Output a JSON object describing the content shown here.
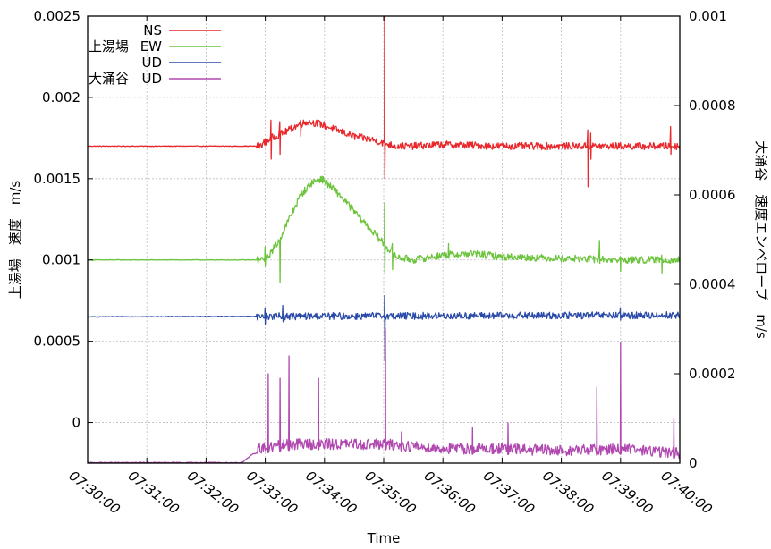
{
  "chart_data": {
    "type": "line",
    "xlabel": "Time",
    "ylabel_left": "上湯場　速度　m/s",
    "ylabel_right": "大涌谷　速度エンベロープ　m/s",
    "x_ticks": [
      "07:30:00",
      "07:31:00",
      "07:32:00",
      "07:33:00",
      "07:34:00",
      "07:35:00",
      "07:36:00",
      "07:37:00",
      "07:38:00",
      "07:39:00",
      "07:40:00"
    ],
    "xlim": [
      "07:30:00",
      "07:40:00"
    ],
    "y_left_ticks": [
      "0",
      "0.0005",
      "0.001",
      "0.0015",
      "0.002",
      "0.0025"
    ],
    "y_left_lim": [
      -0.00025,
      0.0025
    ],
    "y_right_ticks": [
      "0",
      "0.0002",
      "0.0004",
      "0.0006",
      "0.0008",
      "0.001"
    ],
    "y_right_lim": [
      0,
      0.001
    ],
    "grid": true,
    "legend": {
      "position": "top-left",
      "entries": [
        {
          "station": "",
          "component": "NS",
          "color": "#e8282c"
        },
        {
          "station": "上湯場",
          "component": "EW",
          "color": "#6cc43c"
        },
        {
          "station": "",
          "component": "UD",
          "color": "#2a4aa8"
        },
        {
          "station": "大涌谷",
          "component": "UD",
          "color": "#b048b0"
        }
      ]
    },
    "series": [
      {
        "name": "上湯場 NS",
        "axis": "left",
        "color": "#e8282c",
        "baseline": 0.0017,
        "points": [
          [
            0,
            0.0017
          ],
          [
            2.9,
            0.0017
          ],
          [
            3.1,
            0.00175
          ],
          [
            3.3,
            0.00178
          ],
          [
            3.5,
            0.00182
          ],
          [
            3.7,
            0.00185
          ],
          [
            3.9,
            0.00184
          ],
          [
            4.2,
            0.0018
          ],
          [
            4.5,
            0.00176
          ],
          [
            4.8,
            0.00174
          ],
          [
            5.0,
            0.00172
          ],
          [
            5.2,
            0.0017
          ],
          [
            5.5,
            0.0017
          ],
          [
            6.0,
            0.00171
          ],
          [
            7.0,
            0.0017
          ],
          [
            8.0,
            0.0017
          ],
          [
            9.0,
            0.0017
          ],
          [
            10.0,
            0.0017
          ]
        ],
        "spikes": [
          [
            3.1,
            0.00186,
            0.00162
          ],
          [
            3.25,
            0.00185,
            0.00165
          ],
          [
            3.6,
            0.00186,
            0.00176
          ],
          [
            5.02,
            0.0025,
            0.0015
          ],
          [
            8.45,
            0.0018,
            0.00145
          ],
          [
            8.5,
            0.00178,
            0.00162
          ],
          [
            9.85,
            0.00182,
            0.00165
          ]
        ]
      },
      {
        "name": "上湯場 EW",
        "axis": "left",
        "color": "#6cc43c",
        "baseline": 0.001,
        "points": [
          [
            0,
            0.001
          ],
          [
            3.0,
            0.001
          ],
          [
            3.2,
            0.0011
          ],
          [
            3.4,
            0.00125
          ],
          [
            3.6,
            0.0014
          ],
          [
            3.8,
            0.00148
          ],
          [
            3.95,
            0.0015
          ],
          [
            4.2,
            0.00142
          ],
          [
            4.5,
            0.0013
          ],
          [
            4.8,
            0.00118
          ],
          [
            5.0,
            0.0011
          ],
          [
            5.2,
            0.00102
          ],
          [
            5.5,
            0.001
          ],
          [
            6.0,
            0.00103
          ],
          [
            6.5,
            0.00104
          ],
          [
            7.0,
            0.00102
          ],
          [
            8.0,
            0.00101
          ],
          [
            9.0,
            0.001
          ],
          [
            10.0,
            0.001
          ]
        ],
        "spikes": [
          [
            3.0,
            0.00108,
            0.00096
          ],
          [
            3.25,
            0.0011,
            0.00086
          ],
          [
            5.02,
            0.00135,
            0.00092
          ],
          [
            5.15,
            0.0011,
            0.00094
          ],
          [
            6.1,
            0.0011,
            0.00101
          ],
          [
            8.65,
            0.00112,
            0.00098
          ],
          [
            9.0,
            0.00102,
            0.00093
          ],
          [
            9.7,
            0.00103,
            0.00092
          ]
        ]
      },
      {
        "name": "上湯場 UD",
        "axis": "left",
        "color": "#2a4aa8",
        "baseline": 0.00065,
        "points": [
          [
            0,
            0.00065
          ],
          [
            10.0,
            0.00066
          ]
        ],
        "spikes": [
          [
            3.0,
            0.0007,
            0.0006
          ],
          [
            3.3,
            0.00072,
            0.00062
          ],
          [
            5.02,
            0.00078,
            0.00038
          ],
          [
            9.0,
            0.0007,
            0.00063
          ]
        ]
      },
      {
        "name": "大涌谷 UD",
        "axis": "right",
        "color": "#b048b0",
        "baseline": 0.0,
        "points": [
          [
            0,
            0.0
          ],
          [
            2.6,
            0.0
          ],
          [
            2.8,
            2e-05
          ],
          [
            3.5,
            3e-05
          ],
          [
            5.0,
            3e-05
          ],
          [
            6.0,
            2e-05
          ],
          [
            7.0,
            2e-05
          ],
          [
            8.0,
            1.5e-05
          ],
          [
            9.0,
            2e-05
          ],
          [
            10.0,
            1e-05
          ]
        ],
        "spikes": [
          [
            3.05,
            0.0002
          ],
          [
            3.25,
            0.00019
          ],
          [
            3.4,
            0.00024
          ],
          [
            3.9,
            0.00019
          ],
          [
            5.03,
            0.0003
          ],
          [
            5.3,
            7e-05
          ],
          [
            6.5,
            8e-05
          ],
          [
            7.1,
            9e-05
          ],
          [
            8.6,
            0.00017
          ],
          [
            9.0,
            0.00027
          ],
          [
            9.9,
            0.0001
          ]
        ]
      }
    ]
  }
}
